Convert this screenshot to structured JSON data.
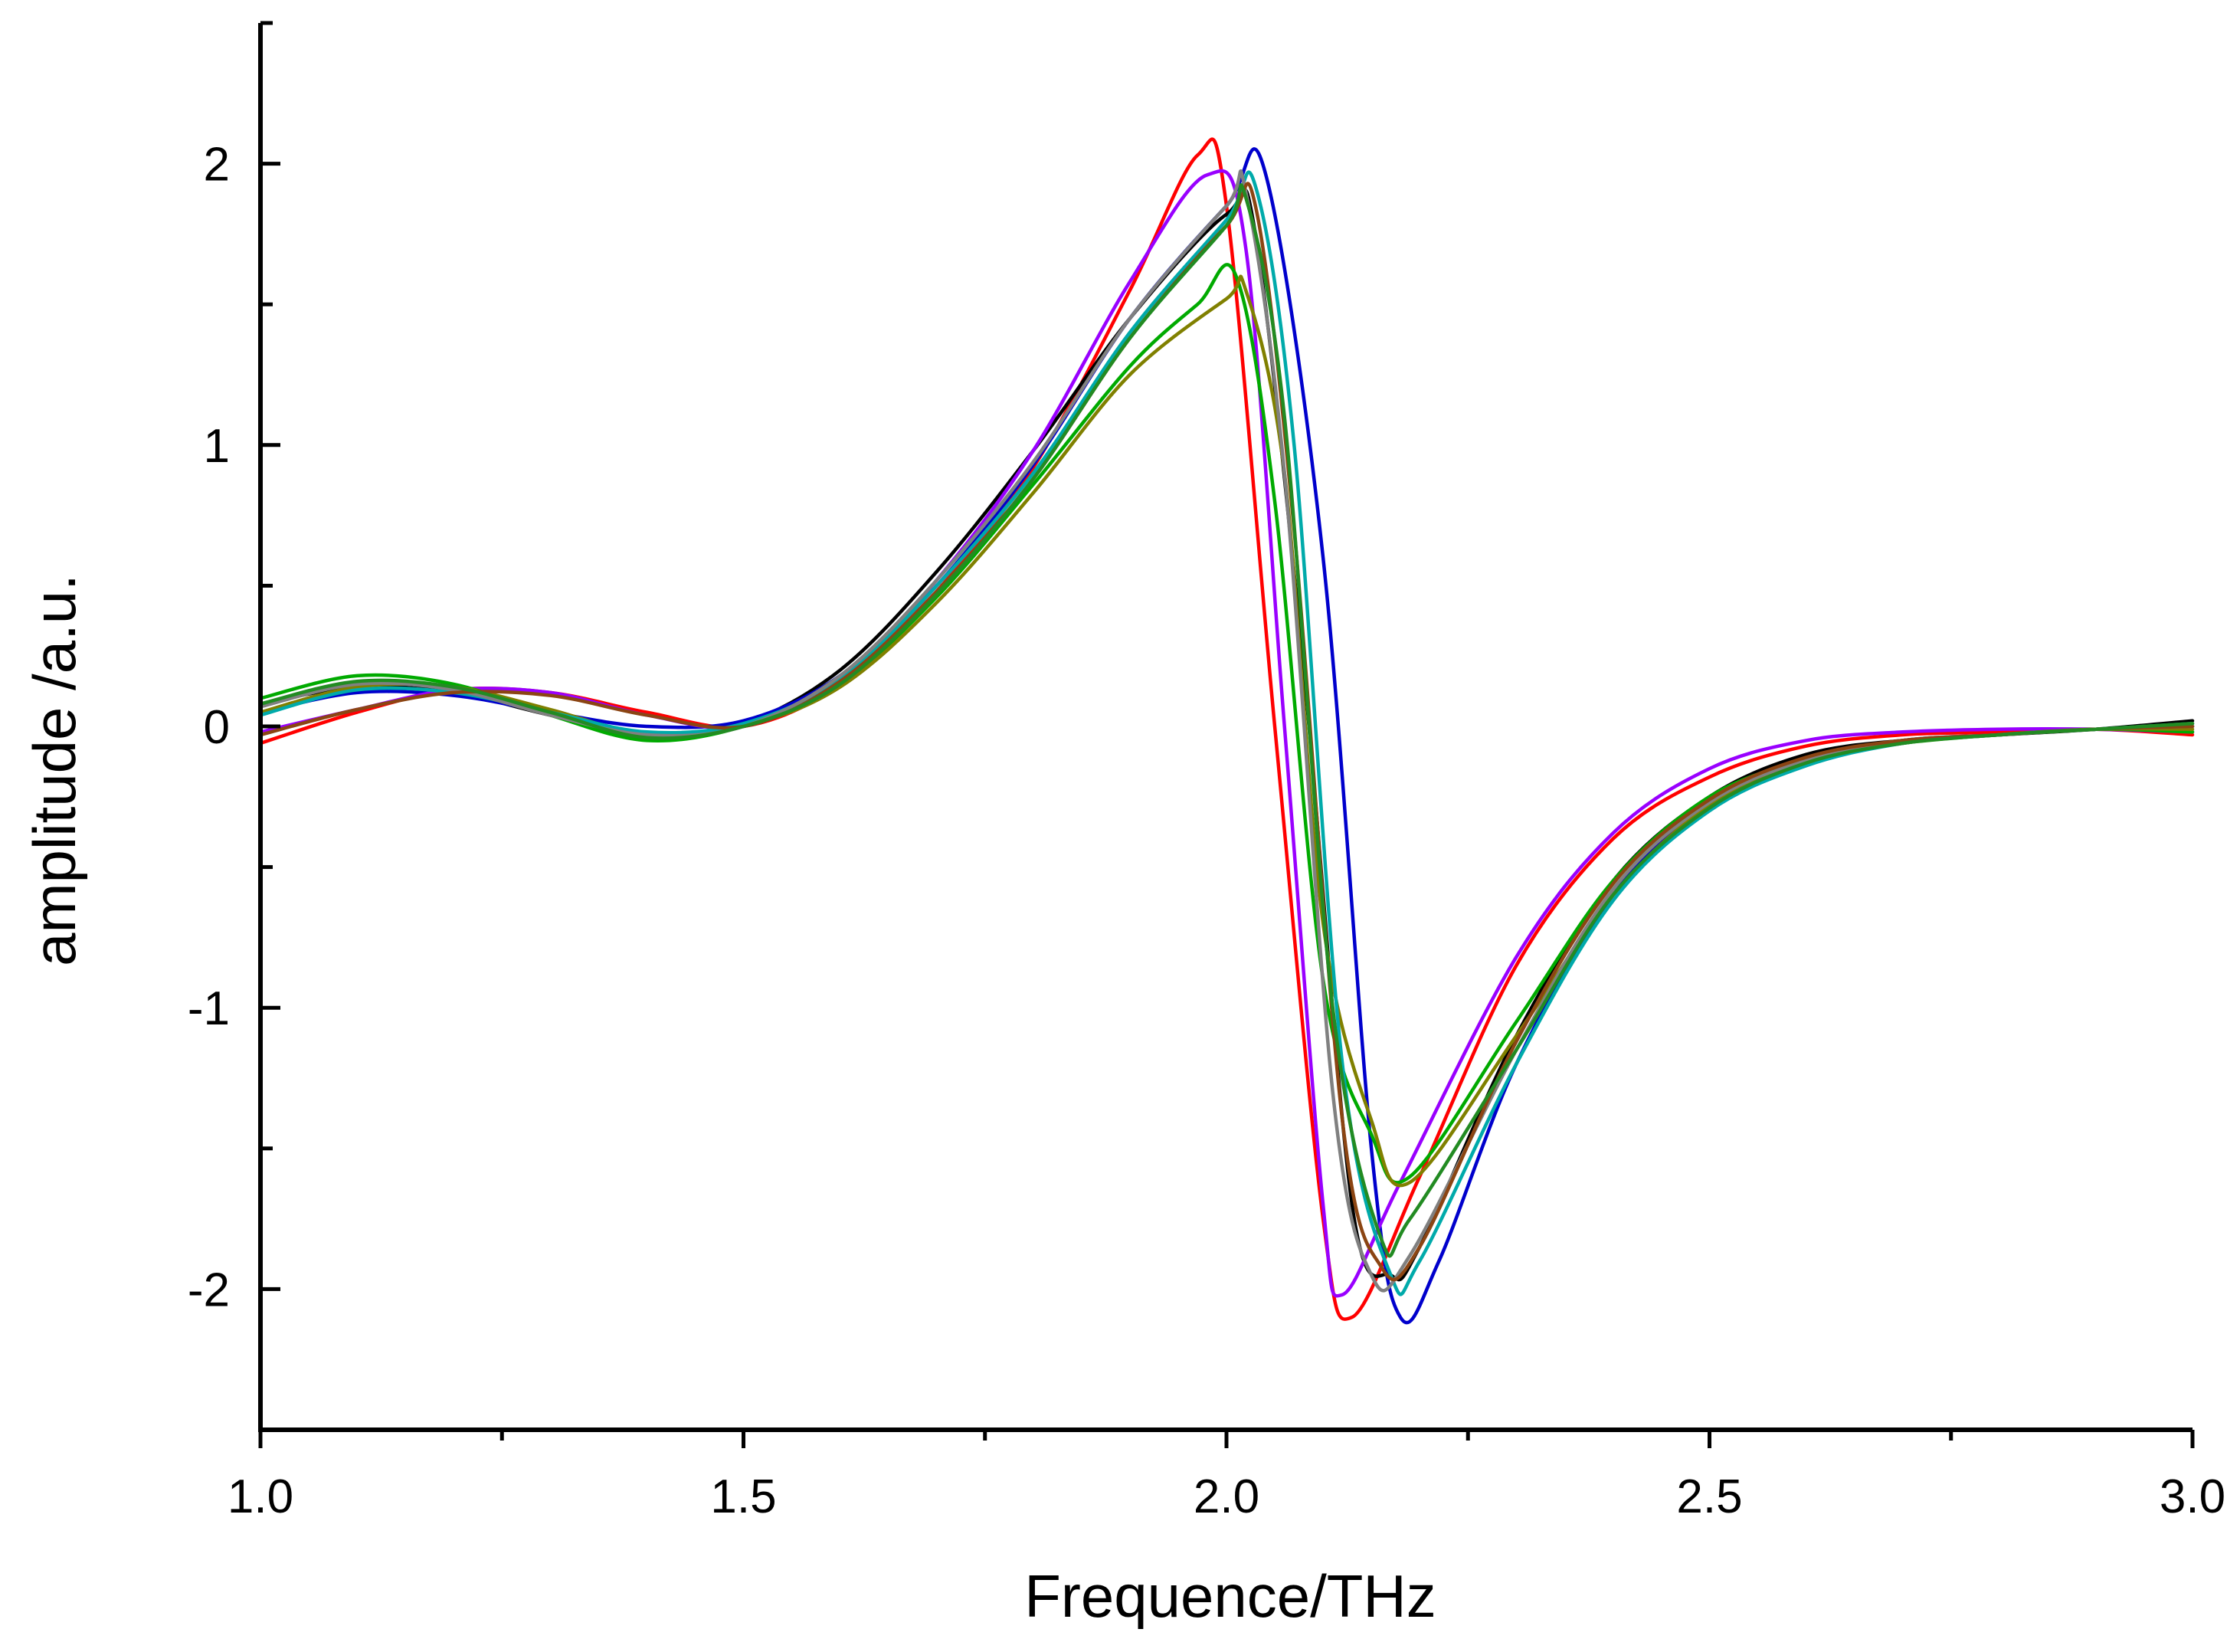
{
  "chart_data": {
    "type": "line",
    "title": "",
    "xlabel": "Frequence/THz",
    "ylabel": "amplitude /a.u.",
    "xlim": [
      1.0,
      3.0
    ],
    "ylim": [
      -2.5,
      2.5
    ],
    "xticks": [
      1.0,
      1.5,
      2.0,
      2.5,
      3.0
    ],
    "xtick_labels": [
      "1.0",
      "1.5",
      "2.0",
      "2.5",
      "3.0"
    ],
    "yticks": [
      -2,
      -1,
      0,
      1,
      2
    ],
    "ytick_labels": [
      "-2",
      "-1",
      "0",
      "1",
      "2"
    ],
    "grid": false,
    "legend": "none",
    "series": [
      {
        "color": "#ff0000",
        "x": [
          1.0,
          1.1,
          1.2,
          1.3,
          1.4,
          1.5,
          1.6,
          1.7,
          1.8,
          1.9,
          1.97,
          2.0,
          2.05,
          2.1,
          2.13,
          2.2,
          2.3,
          2.4,
          2.5,
          2.6,
          2.7,
          2.8,
          2.9,
          3.0
        ],
        "y": [
          -0.06,
          0.05,
          0.13,
          0.12,
          0.05,
          0.0,
          0.15,
          0.48,
          0.92,
          1.55,
          2.03,
          1.85,
          0.0,
          -1.75,
          -2.1,
          -1.6,
          -0.85,
          -0.4,
          -0.18,
          -0.07,
          -0.03,
          -0.02,
          -0.01,
          -0.03
        ]
      },
      {
        "color": "#000000",
        "x": [
          1.0,
          1.1,
          1.2,
          1.3,
          1.4,
          1.5,
          1.6,
          1.7,
          1.8,
          1.9,
          2.0,
          2.03,
          2.08,
          2.13,
          2.17,
          2.2,
          2.3,
          2.4,
          2.5,
          2.6,
          2.7,
          2.8,
          2.9,
          3.0
        ],
        "y": [
          0.08,
          0.14,
          0.12,
          0.04,
          -0.03,
          0.01,
          0.2,
          0.55,
          0.98,
          1.45,
          1.82,
          1.75,
          0.2,
          -1.7,
          -1.95,
          -1.85,
          -1.1,
          -0.55,
          -0.25,
          -0.1,
          -0.05,
          -0.03,
          -0.01,
          0.02
        ]
      },
      {
        "color": "#0000cc",
        "x": [
          1.0,
          1.1,
          1.2,
          1.3,
          1.4,
          1.5,
          1.6,
          1.7,
          1.8,
          1.9,
          2.0,
          2.04,
          2.1,
          2.15,
          2.18,
          2.22,
          2.3,
          2.4,
          2.5,
          2.6,
          2.7,
          2.8,
          2.9,
          3.0
        ],
        "y": [
          0.05,
          0.12,
          0.11,
          0.05,
          0.0,
          0.02,
          0.18,
          0.5,
          0.93,
          1.45,
          1.85,
          1.97,
          0.6,
          -1.5,
          -2.1,
          -1.9,
          -1.2,
          -0.6,
          -0.28,
          -0.12,
          -0.05,
          -0.03,
          -0.01,
          0.0
        ]
      },
      {
        "color": "#9900ff",
        "x": [
          1.0,
          1.1,
          1.2,
          1.3,
          1.4,
          1.5,
          1.6,
          1.7,
          1.8,
          1.9,
          1.98,
          2.02,
          2.06,
          2.1,
          2.12,
          2.18,
          2.3,
          2.4,
          2.5,
          2.6,
          2.7,
          2.8,
          2.9,
          3.0
        ],
        "y": [
          -0.02,
          0.06,
          0.13,
          0.12,
          0.04,
          0.0,
          0.17,
          0.52,
          0.98,
          1.58,
          1.96,
          1.7,
          0.0,
          -1.7,
          -2.02,
          -1.62,
          -0.82,
          -0.38,
          -0.15,
          -0.05,
          -0.02,
          -0.01,
          -0.01,
          -0.02
        ]
      },
      {
        "color": "#00aa00",
        "x": [
          1.0,
          1.1,
          1.2,
          1.3,
          1.4,
          1.5,
          1.6,
          1.7,
          1.8,
          1.9,
          1.97,
          2.01,
          2.05,
          2.1,
          2.15,
          2.19,
          2.3,
          2.4,
          2.5,
          2.6,
          2.7,
          2.8,
          2.9,
          3.0
        ],
        "y": [
          0.1,
          0.18,
          0.15,
          0.04,
          -0.05,
          0.0,
          0.15,
          0.46,
          0.86,
          1.28,
          1.5,
          1.6,
          0.8,
          -0.9,
          -1.45,
          -1.6,
          -1.05,
          -0.55,
          -0.25,
          -0.12,
          -0.06,
          -0.03,
          -0.01,
          -0.02
        ]
      },
      {
        "color": "#808000",
        "x": [
          1.0,
          1.1,
          1.2,
          1.3,
          1.4,
          1.5,
          1.6,
          1.7,
          1.8,
          1.9,
          2.0,
          2.02,
          2.06,
          2.1,
          2.15,
          2.19,
          2.3,
          2.4,
          2.5,
          2.6,
          2.7,
          2.8,
          2.9,
          3.0
        ],
        "y": [
          0.05,
          0.14,
          0.14,
          0.06,
          -0.03,
          0.0,
          0.14,
          0.44,
          0.83,
          1.25,
          1.52,
          1.55,
          0.9,
          -0.7,
          -1.4,
          -1.62,
          -1.1,
          -0.6,
          -0.28,
          -0.13,
          -0.06,
          -0.03,
          -0.01,
          -0.01
        ]
      },
      {
        "color": "#00aaaa",
        "x": [
          1.0,
          1.1,
          1.2,
          1.3,
          1.4,
          1.5,
          1.6,
          1.7,
          1.8,
          1.9,
          2.0,
          2.03,
          2.07,
          2.12,
          2.17,
          2.2,
          2.3,
          2.4,
          2.5,
          2.6,
          2.7,
          2.8,
          2.9,
          3.0
        ],
        "y": [
          0.04,
          0.13,
          0.12,
          0.05,
          -0.02,
          0.01,
          0.17,
          0.5,
          0.9,
          1.4,
          1.8,
          1.92,
          1.0,
          -1.2,
          -1.95,
          -1.9,
          -1.2,
          -0.62,
          -0.3,
          -0.14,
          -0.06,
          -0.03,
          -0.01,
          0.01
        ]
      },
      {
        "color": "#808080",
        "x": [
          1.0,
          1.1,
          1.2,
          1.3,
          1.4,
          1.5,
          1.6,
          1.7,
          1.8,
          1.9,
          2.0,
          2.02,
          2.06,
          2.11,
          2.15,
          2.19,
          2.3,
          2.4,
          2.5,
          2.6,
          2.7,
          2.8,
          2.9,
          3.0
        ],
        "y": [
          0.07,
          0.15,
          0.13,
          0.04,
          -0.03,
          0.0,
          0.18,
          0.52,
          0.94,
          1.45,
          1.85,
          1.9,
          0.9,
          -1.3,
          -1.95,
          -1.88,
          -1.15,
          -0.58,
          -0.27,
          -0.12,
          -0.05,
          -0.03,
          -0.01,
          0.0
        ]
      },
      {
        "color": "#8b4513",
        "x": [
          1.0,
          1.1,
          1.2,
          1.3,
          1.4,
          1.5,
          1.6,
          1.7,
          1.8,
          1.9,
          2.0,
          2.03,
          2.07,
          2.12,
          2.16,
          2.2,
          2.3,
          2.4,
          2.5,
          2.6,
          2.7,
          2.8,
          2.9,
          3.0
        ],
        "y": [
          -0.03,
          0.06,
          0.12,
          0.11,
          0.04,
          0.0,
          0.16,
          0.48,
          0.88,
          1.38,
          1.78,
          1.85,
          0.7,
          -1.4,
          -1.92,
          -1.85,
          -1.12,
          -0.56,
          -0.26,
          -0.11,
          -0.05,
          -0.03,
          -0.01,
          0.0
        ]
      },
      {
        "color": "#228b22",
        "x": [
          1.0,
          1.1,
          1.2,
          1.3,
          1.4,
          1.5,
          1.6,
          1.7,
          1.8,
          1.9,
          2.0,
          2.02,
          2.06,
          2.11,
          2.16,
          2.19,
          2.3,
          2.4,
          2.5,
          2.6,
          2.7,
          2.8,
          2.9,
          3.0
        ],
        "y": [
          0.08,
          0.16,
          0.14,
          0.05,
          -0.04,
          0.0,
          0.15,
          0.47,
          0.88,
          1.38,
          1.78,
          1.88,
          1.1,
          -1.0,
          -1.82,
          -1.75,
          -1.15,
          -0.6,
          -0.29,
          -0.13,
          -0.06,
          -0.03,
          -0.01,
          0.01
        ]
      }
    ]
  }
}
